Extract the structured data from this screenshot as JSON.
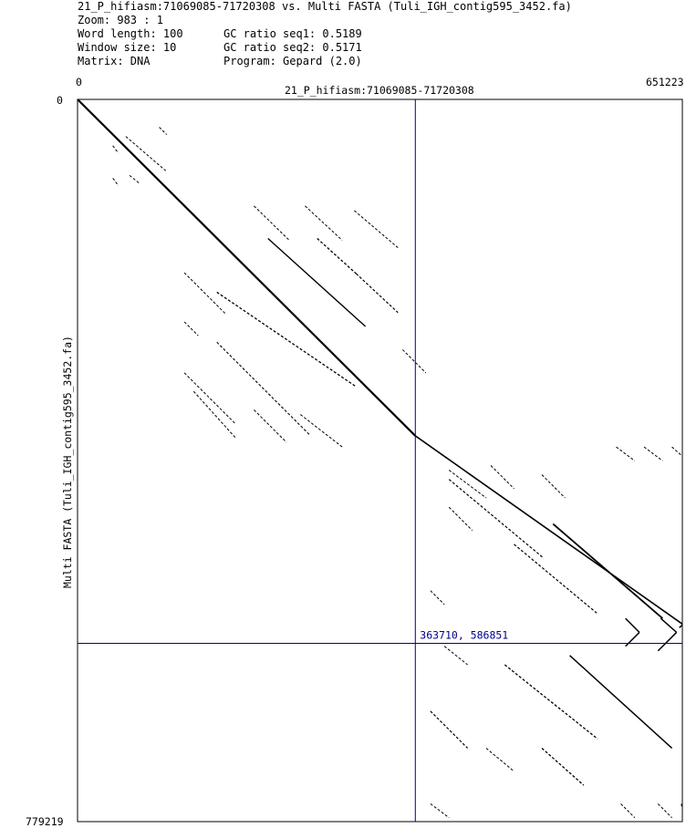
{
  "header": {
    "title": "21_P_hifiasm:71069085-71720308 vs. Multi FASTA (Tuli_IGH_contig595_3452.fa)",
    "zoom": "Zoom: 983 : 1",
    "word_length": "Word length: 100",
    "window_size": "Window size: 10",
    "matrix": "Matrix: DNA",
    "gc1": "GC ratio seq1: 0.5189",
    "gc2": "GC ratio seq2: 0.5171",
    "program": "Program: Gepard (2.0)"
  },
  "chart_data": {
    "type": "scatter",
    "xlabel": "21_P_hifiasm:71069085-71720308",
    "ylabel": "Multi FASTA (Tuli_IGH_contig595_3452.fa)",
    "xlim": [
      0,
      651223
    ],
    "ylim": [
      0,
      779219
    ],
    "x_ticks": [
      "0",
      "651223"
    ],
    "y_ticks": [
      "0",
      "779219"
    ],
    "crosshair": {
      "x": 363710,
      "y": 586851,
      "label": "363710, 586851"
    },
    "colors": {
      "dots": "#000000",
      "crosshair": "#00008b",
      "frame": "#000000"
    },
    "segments": [
      [
        0,
        0,
        363710,
        363000,
        2.2
      ],
      [
        363710,
        363000,
        651223,
        566000,
        1.6
      ],
      [
        52000,
        40000,
        95000,
        77000,
        1
      ],
      [
        88000,
        30000,
        96000,
        38000,
        1
      ],
      [
        38000,
        50000,
        44000,
        58000,
        1
      ],
      [
        38000,
        85000,
        44000,
        93000,
        1
      ],
      [
        56000,
        82000,
        66000,
        90000,
        1
      ],
      [
        190000,
        115000,
        228000,
        152000,
        1
      ],
      [
        245000,
        115000,
        285000,
        152000,
        1
      ],
      [
        298000,
        120000,
        345000,
        160000,
        1
      ],
      [
        205000,
        150000,
        310000,
        245000,
        1.4
      ],
      [
        258000,
        150000,
        300000,
        188000,
        1.3
      ],
      [
        300000,
        188000,
        345000,
        230000,
        1.2
      ],
      [
        115000,
        187000,
        160000,
        232000,
        1
      ],
      [
        150000,
        208000,
        300000,
        310000,
        1.3
      ],
      [
        115000,
        240000,
        130000,
        255000,
        1
      ],
      [
        150000,
        262000,
        250000,
        362000,
        1.1
      ],
      [
        115000,
        295000,
        170000,
        350000,
        1
      ],
      [
        125000,
        315000,
        170000,
        365000,
        1
      ],
      [
        190000,
        335000,
        225000,
        370000,
        1
      ],
      [
        240000,
        340000,
        285000,
        375000,
        1
      ],
      [
        350000,
        270000,
        375000,
        295000,
        1
      ],
      [
        400000,
        410000,
        502000,
        495000,
        1.2
      ],
      [
        470000,
        480000,
        560000,
        555000,
        1.2
      ],
      [
        512000,
        458000,
        630000,
        560000,
        1.8
      ],
      [
        590000,
        560000,
        605000,
        575000,
        1.5
      ],
      [
        605000,
        575000,
        590000,
        590000,
        1.5
      ],
      [
        628000,
        560000,
        645000,
        575000,
        1.5
      ],
      [
        645000,
        575000,
        625000,
        595000,
        1.5
      ],
      [
        648000,
        570000,
        651223,
        567000,
        1.5
      ],
      [
        580000,
        375000,
        600000,
        390000,
        1
      ],
      [
        610000,
        375000,
        630000,
        390000,
        1
      ],
      [
        640000,
        375000,
        651223,
        385000,
        1
      ],
      [
        400000,
        400000,
        440000,
        430000,
        1
      ],
      [
        445000,
        395000,
        470000,
        420000,
        1
      ],
      [
        500000,
        405000,
        525000,
        430000,
        1
      ],
      [
        380000,
        530000,
        395000,
        545000,
        1
      ],
      [
        400000,
        440000,
        425000,
        465000,
        1
      ],
      [
        460000,
        610000,
        560000,
        690000,
        1.3
      ],
      [
        530000,
        600000,
        640000,
        700000,
        1.5
      ],
      [
        380000,
        660000,
        420000,
        700000,
        1.2
      ],
      [
        395000,
        590000,
        420000,
        610000,
        1
      ],
      [
        500000,
        700000,
        545000,
        740000,
        1.3
      ],
      [
        440000,
        700000,
        470000,
        725000,
        1
      ],
      [
        380000,
        760000,
        400000,
        775000,
        1
      ],
      [
        585000,
        760000,
        600000,
        775000,
        1
      ],
      [
        625000,
        760000,
        640000,
        775000,
        1
      ],
      [
        650000,
        760000,
        651223,
        765000,
        1
      ]
    ]
  }
}
